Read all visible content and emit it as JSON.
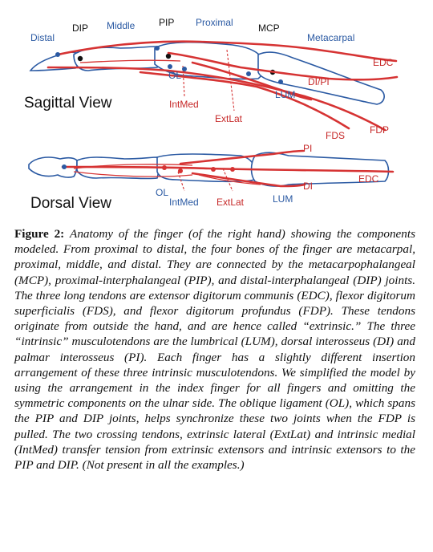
{
  "figure": {
    "sagittal_labels": {
      "distal": "Distal",
      "dip": "DIP",
      "middle": "Middle",
      "pip": "PIP",
      "proximal": "Proximal",
      "mcp": "MCP",
      "metacarpal": "Metacarpal",
      "edc": "EDC",
      "di_pi": "DI/PI",
      "ol": "OL",
      "lum": "LUM",
      "intmed": "IntMed",
      "extlat": "ExtLat",
      "fds": "FDS",
      "fdp": "FDP"
    },
    "sagittal_title": "Sagittal View",
    "dorsal_title": "Dorsal View",
    "dorsal_labels": {
      "pi": "PI",
      "edc": "EDC",
      "di": "DI",
      "ol": "OL",
      "intmed": "IntMed",
      "extlat": "ExtLat",
      "lum": "LUM"
    },
    "colors": {
      "bone_outline": "#2b5aa3",
      "tendon": "#d63333",
      "label": "#2b5aa3"
    }
  },
  "caption": {
    "label": "Figure 2:",
    "text": "Anatomy of the finger (of the right hand) showing the components modeled. From proximal to distal, the four bones of the finger are metacarpal, proximal, middle, and distal. They are connected by the metacarpophalangeal (MCP), proximal-interphalangeal (PIP), and distal-interphalangeal (DIP) joints. The three long tendons are extensor digitorum communis (EDC), flexor digitorum superficialis (FDS), and flexor digitorum profundus (FDP). These tendons originate from outside the hand, and are hence called “extrinsic.” The three “intrinsic” musculotendons are the lumbrical (LUM), dorsal interosseus (DI) and palmar interosseus (PI). Each finger has a slightly different insertion arrangement of these three intrinsic musculotendons. We simplified the model by using the arrangement in the index finger for all fingers and omitting the symmetric components on the ulnar side. The oblique ligament (OL), which spans the PIP and DIP joints, helps synchronize these two joints when the FDP is pulled. The two crossing tendons, extrinsic lateral (ExtLat) and intrinsic medial (IntMed) transfer tension from extrinsic extensors and intrinsic extensors to the PIP and DIP. (Not present in all the examples.)"
  }
}
